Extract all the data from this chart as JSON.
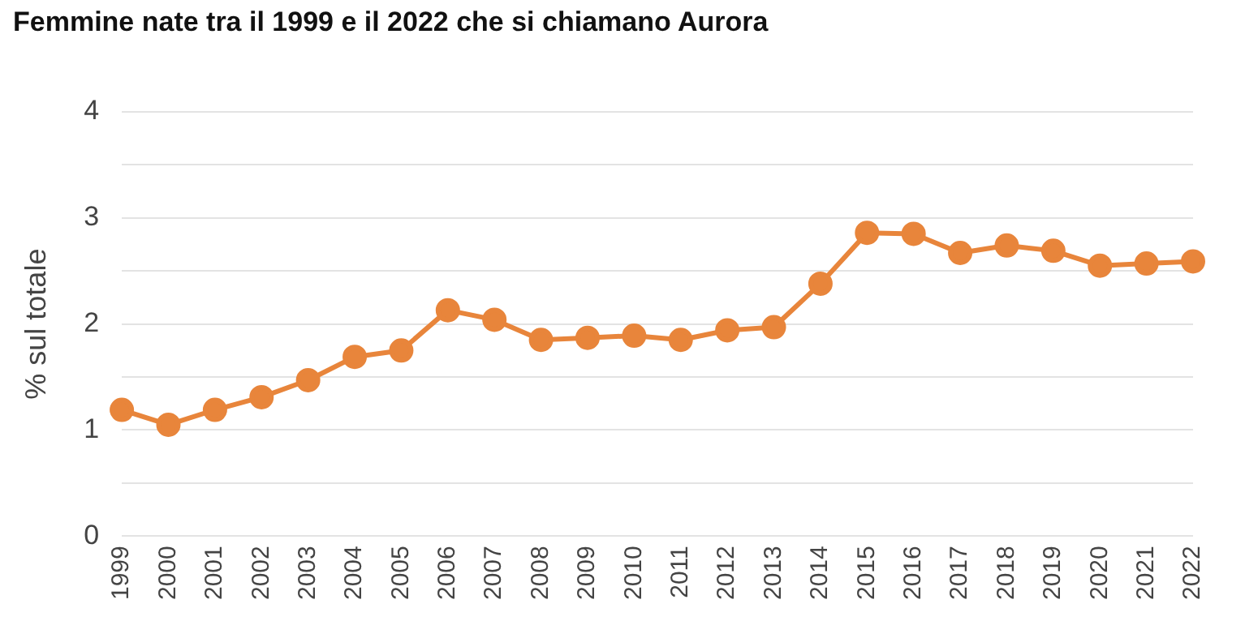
{
  "chart_data": {
    "type": "line",
    "title": "Femmine nate tra il 1999 e il 2022 che si chiamano Aurora",
    "ylabel": "% sul totale",
    "categories": [
      "1999",
      "2000",
      "2001",
      "2002",
      "2003",
      "2004",
      "2005",
      "2006",
      "2007",
      "2008",
      "2009",
      "2010",
      "2011",
      "2012",
      "2013",
      "2014",
      "2015",
      "2016",
      "2017",
      "2018",
      "2019",
      "2020",
      "2021",
      "2022"
    ],
    "series": [
      {
        "color": "#e8853b",
        "values": [
          1.19,
          1.05,
          1.19,
          1.31,
          1.47,
          1.69,
          1.75,
          2.13,
          2.04,
          1.85,
          1.87,
          1.89,
          1.85,
          1.94,
          1.97,
          2.38,
          2.86,
          2.85,
          2.67,
          2.74,
          2.69,
          2.55,
          2.57,
          2.59
        ]
      }
    ],
    "ylim": [
      0,
      4
    ],
    "yticks": [
      0,
      {
        "value": 0.5,
        "label": null
      },
      1,
      {
        "value": 1.5,
        "label": null
      },
      2,
      {
        "value": 2.5,
        "label": null
      },
      3,
      {
        "value": 3.5,
        "label": null
      },
      4
    ],
    "grid": "y",
    "legend": false,
    "marker": "circle",
    "line_style": "solid"
  }
}
